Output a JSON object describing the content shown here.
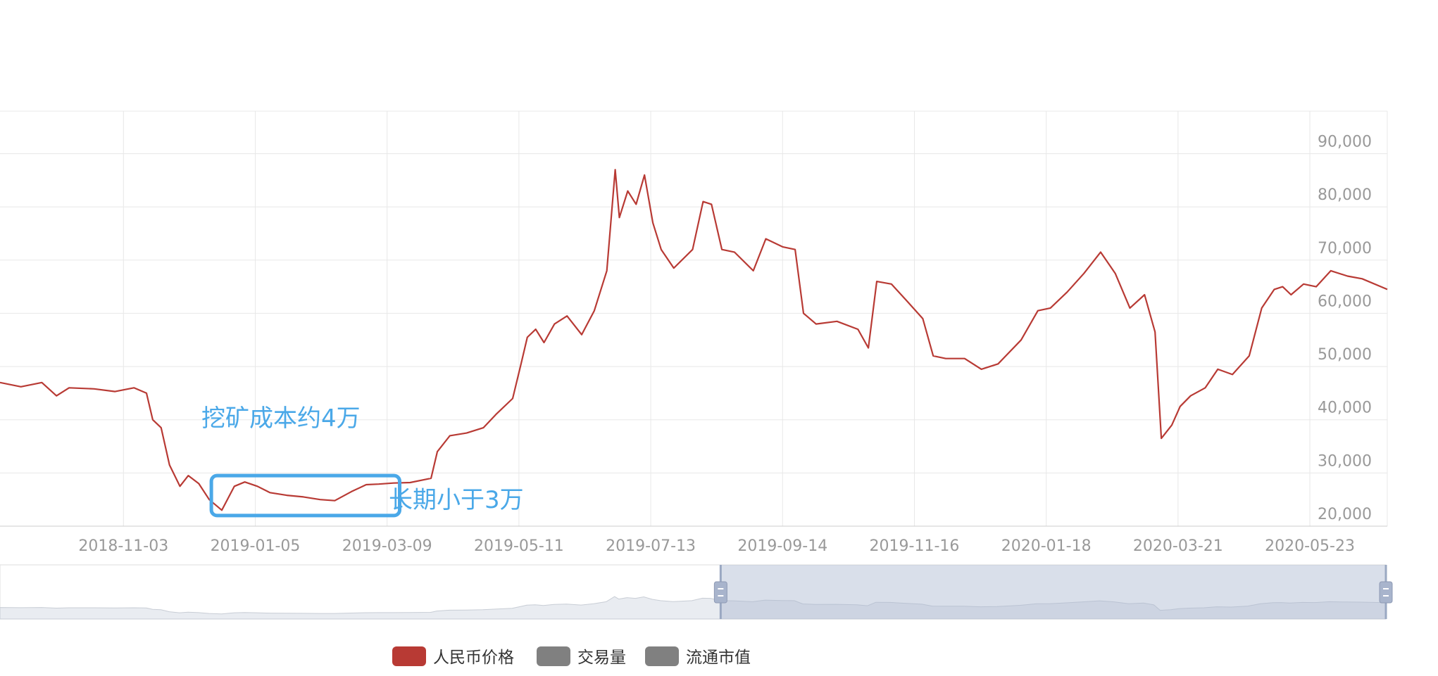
{
  "chart_data": {
    "type": "line",
    "title": "",
    "xlabel": "",
    "ylabel": "",
    "grid": true,
    "legend_position": "bottom",
    "x_range": [
      "2018-09-05",
      "2020-06-29"
    ],
    "ylim": [
      20000,
      98000
    ],
    "y_ticks": [
      "20,000",
      "30,000",
      "40,000",
      "50,000",
      "60,000",
      "70,000",
      "80,000",
      "90,000"
    ],
    "y_tick_values": [
      20000,
      30000,
      40000,
      50000,
      60000,
      70000,
      80000,
      90000
    ],
    "x_tick_labels": [
      "2018-11-03",
      "2019-01-05",
      "2019-03-09",
      "2019-05-11",
      "2019-07-13",
      "2019-09-14",
      "2019-11-16",
      "2020-01-18",
      "2020-03-21",
      "2020-05-23"
    ],
    "series": [
      {
        "name": "人民币价格",
        "color": "#b83a34",
        "points": [
          [
            "2018-09-05",
            47000
          ],
          [
            "2018-09-15",
            46200
          ],
          [
            "2018-09-25",
            47000
          ],
          [
            "2018-10-02",
            44500
          ],
          [
            "2018-10-08",
            46000
          ],
          [
            "2018-10-20",
            45800
          ],
          [
            "2018-10-30",
            45300
          ],
          [
            "2018-11-08",
            46000
          ],
          [
            "2018-11-14",
            45000
          ],
          [
            "2018-11-17",
            40000
          ],
          [
            "2018-11-21",
            38500
          ],
          [
            "2018-11-25",
            31500
          ],
          [
            "2018-11-30",
            27500
          ],
          [
            "2018-12-04",
            29500
          ],
          [
            "2018-12-09",
            28000
          ],
          [
            "2018-12-14",
            25000
          ],
          [
            "2018-12-20",
            23000
          ],
          [
            "2018-12-26",
            27500
          ],
          [
            "2018-12-31",
            28300
          ],
          [
            "2019-01-06",
            27500
          ],
          [
            "2019-01-12",
            26300
          ],
          [
            "2019-01-20",
            25800
          ],
          [
            "2019-01-28",
            25500
          ],
          [
            "2019-02-05",
            25000
          ],
          [
            "2019-02-12",
            24800
          ],
          [
            "2019-02-20",
            26500
          ],
          [
            "2019-02-27",
            27800
          ],
          [
            "2019-03-05",
            27900
          ],
          [
            "2019-03-12",
            28100
          ],
          [
            "2019-03-20",
            28200
          ],
          [
            "2019-03-30",
            29000
          ],
          [
            "2019-04-02",
            34000
          ],
          [
            "2019-04-08",
            37000
          ],
          [
            "2019-04-16",
            37500
          ],
          [
            "2019-04-24",
            38500
          ],
          [
            "2019-04-30",
            41000
          ],
          [
            "2019-05-08",
            44000
          ],
          [
            "2019-05-12",
            50500
          ],
          [
            "2019-05-15",
            55500
          ],
          [
            "2019-05-19",
            57000
          ],
          [
            "2019-05-23",
            54500
          ],
          [
            "2019-05-28",
            58000
          ],
          [
            "2019-06-03",
            59500
          ],
          [
            "2019-06-10",
            56000
          ],
          [
            "2019-06-16",
            60500
          ],
          [
            "2019-06-22",
            68000
          ],
          [
            "2019-06-26",
            87000
          ],
          [
            "2019-06-28",
            78000
          ],
          [
            "2019-07-02",
            83000
          ],
          [
            "2019-07-06",
            80500
          ],
          [
            "2019-07-10",
            86000
          ],
          [
            "2019-07-14",
            77000
          ],
          [
            "2019-07-18",
            72000
          ],
          [
            "2019-07-24",
            68500
          ],
          [
            "2019-08-02",
            72000
          ],
          [
            "2019-08-07",
            81000
          ],
          [
            "2019-08-11",
            80500
          ],
          [
            "2019-08-16",
            72000
          ],
          [
            "2019-08-22",
            71500
          ],
          [
            "2019-08-31",
            68000
          ],
          [
            "2019-09-06",
            74000
          ],
          [
            "2019-09-14",
            72500
          ],
          [
            "2019-09-20",
            72000
          ],
          [
            "2019-09-24",
            60000
          ],
          [
            "2019-09-30",
            58000
          ],
          [
            "2019-10-10",
            58500
          ],
          [
            "2019-10-20",
            57000
          ],
          [
            "2019-10-25",
            53500
          ],
          [
            "2019-10-29",
            66000
          ],
          [
            "2019-11-05",
            65500
          ],
          [
            "2019-11-12",
            62500
          ],
          [
            "2019-11-20",
            59000
          ],
          [
            "2019-11-25",
            52000
          ],
          [
            "2019-12-01",
            51500
          ],
          [
            "2019-12-10",
            51500
          ],
          [
            "2019-12-18",
            49500
          ],
          [
            "2019-12-26",
            50500
          ],
          [
            "2020-01-06",
            55000
          ],
          [
            "2020-01-14",
            60500
          ],
          [
            "2020-01-20",
            61000
          ],
          [
            "2020-01-28",
            64000
          ],
          [
            "2020-02-05",
            67500
          ],
          [
            "2020-02-13",
            71500
          ],
          [
            "2020-02-20",
            67500
          ],
          [
            "2020-02-27",
            61000
          ],
          [
            "2020-03-05",
            63500
          ],
          [
            "2020-03-10",
            56500
          ],
          [
            "2020-03-13",
            36500
          ],
          [
            "2020-03-18",
            39000
          ],
          [
            "2020-03-22",
            42500
          ],
          [
            "2020-03-27",
            44500
          ],
          [
            "2020-04-03",
            46000
          ],
          [
            "2020-04-09",
            49500
          ],
          [
            "2020-04-16",
            48500
          ],
          [
            "2020-04-24",
            52000
          ],
          [
            "2020-04-30",
            61000
          ],
          [
            "2020-05-06",
            64500
          ],
          [
            "2020-05-10",
            65000
          ],
          [
            "2020-05-14",
            63500
          ],
          [
            "2020-05-20",
            65500
          ],
          [
            "2020-05-26",
            65000
          ],
          [
            "2020-06-02",
            68000
          ],
          [
            "2020-06-10",
            67000
          ],
          [
            "2020-06-17",
            66500
          ],
          [
            "2020-06-29",
            64500
          ]
        ]
      },
      {
        "name": "交易量",
        "color": "#808080",
        "points": []
      },
      {
        "name": "流通市值",
        "color": "#808080",
        "points": []
      }
    ],
    "legend": [
      {
        "label": "人民币价格",
        "color": "#b83a34"
      },
      {
        "label": "交易量",
        "color": "#808080"
      },
      {
        "label": "流通市值",
        "color": "#808080"
      }
    ],
    "annotations": [
      {
        "text": "挖矿成本约4万",
        "color": "#4aa8e8"
      },
      {
        "text": "长期小于3万",
        "color": "#4aa8e8"
      }
    ],
    "highlight_box": {
      "x_start": "2018-12-15",
      "x_end": "2019-03-15",
      "y_low": 22000,
      "y_high": 29500,
      "color": "#4aa8e8"
    },
    "zoom_range": {
      "start": 0.52,
      "end": 1.0
    }
  }
}
